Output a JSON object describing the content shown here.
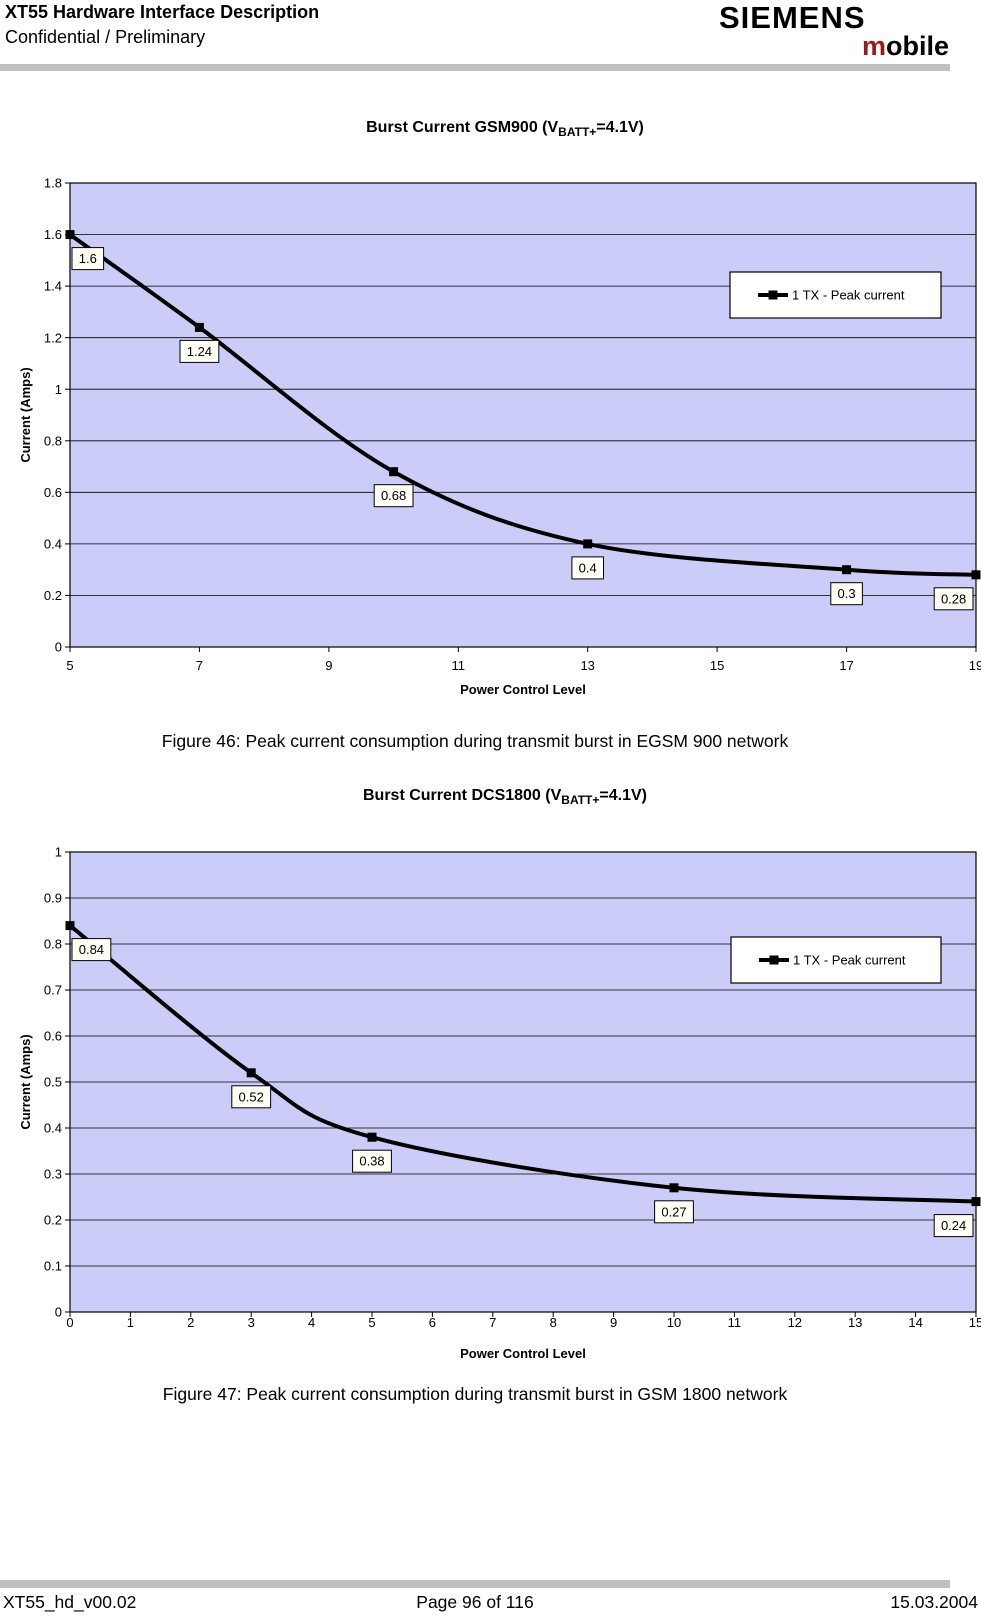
{
  "header": {
    "title": "XT55 Hardware Interface Description",
    "subtitle": "Confidential / Preliminary",
    "logo": {
      "brand": "SIEMENS",
      "mobile_m": "m",
      "mobile_rest": "obile",
      "m_color": "#9b1b1a"
    }
  },
  "chart_data": [
    {
      "type": "line",
      "title": {
        "prefix": "Burst Current GSM900 (V",
        "sub": "BATT+",
        "suffix": "=4.1V)"
      },
      "xlabel": "Power Control Level",
      "ylabel": "Current (Amps)",
      "legend": "1 TX - Peak current",
      "legend_position": "upper-right",
      "grid": "horizontal",
      "series": [
        {
          "name": "1 TX - Peak current",
          "x": [
            5,
            7,
            10,
            13,
            17,
            19
          ],
          "y": [
            1.6,
            1.24,
            0.68,
            0.4,
            0.3,
            0.28
          ],
          "point_labels": [
            "1.6",
            "1.24",
            "0.68",
            "0.4",
            "0.3",
            "0.28"
          ]
        }
      ],
      "xticks": [
        5,
        7,
        9,
        11,
        13,
        15,
        17,
        19
      ],
      "xlim": [
        5,
        19
      ],
      "ylim": [
        0,
        1.8
      ],
      "ytick_step": 0.2,
      "colors": {
        "plot_bg": "#ccccf8",
        "line": "#000000",
        "grid": "#000000",
        "label_box": "#fffff6"
      }
    },
    {
      "type": "line",
      "title": {
        "prefix": "Burst Current DCS1800 (V",
        "sub": "BATT+",
        "suffix": "=4.1V)"
      },
      "xlabel": "Power Control Level",
      "ylabel": "Current (Amps)",
      "legend": "1 TX - Peak current",
      "legend_position": "upper-right",
      "grid": "horizontal",
      "series": [
        {
          "name": "1 TX - Peak current",
          "x": [
            0,
            3,
            5,
            10,
            15
          ],
          "y": [
            0.84,
            0.52,
            0.38,
            0.27,
            0.24
          ],
          "point_labels": [
            "0.84",
            "0.52",
            "0.38",
            "0.27",
            "0.24"
          ]
        }
      ],
      "xticks": [
        0,
        1,
        2,
        3,
        4,
        5,
        6,
        7,
        8,
        9,
        10,
        11,
        12,
        13,
        14,
        15
      ],
      "xlim": [
        0,
        15
      ],
      "ylim": [
        0,
        1
      ],
      "ytick_step": 0.1,
      "colors": {
        "plot_bg": "#ccccf8",
        "line": "#000000",
        "grid": "#000000",
        "label_box": "#fffff6"
      }
    }
  ],
  "figures": [
    {
      "caption": "Figure 46: Peak current consumption during transmit burst in EGSM 900 network"
    },
    {
      "caption": "Figure 47: Peak current consumption during transmit burst in GSM 1800 network"
    }
  ],
  "footer": {
    "left": "XT55_hd_v00.02",
    "center": "Page 96 of 116",
    "right": "15.03.2004"
  }
}
